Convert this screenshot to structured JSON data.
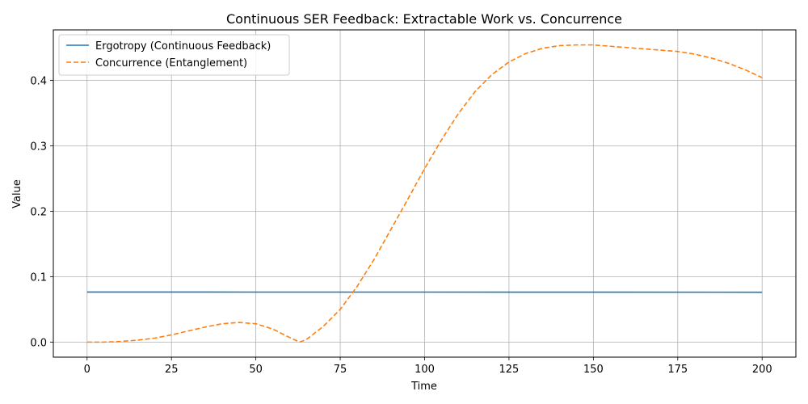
{
  "chart_data": {
    "type": "line",
    "title": "Continuous SER Feedback: Extractable Work vs. Concurrence",
    "xlabel": "Time",
    "ylabel": "Value",
    "xlim": [
      -10,
      210
    ],
    "ylim": [
      -0.023,
      0.477
    ],
    "xticks": [
      0,
      25,
      50,
      75,
      100,
      125,
      150,
      175,
      200
    ],
    "yticks": [
      0.0,
      0.1,
      0.2,
      0.3,
      0.4
    ],
    "ytick_labels": [
      "0.0",
      "0.1",
      "0.2",
      "0.3",
      "0.4"
    ],
    "grid": true,
    "legend_position": "top-left",
    "series": [
      {
        "name": "Ergotropy (Continuous Feedback)",
        "color": "#1f77b4",
        "style": "solid",
        "x": [
          0,
          50,
          100,
          150,
          200
        ],
        "y": [
          0.0765,
          0.0764,
          0.0764,
          0.0763,
          0.0762
        ]
      },
      {
        "name": "Concurrence (Entanglement)",
        "color": "#ff7f0e",
        "style": "dashed",
        "x": [
          0,
          5,
          10,
          15,
          20,
          25,
          30,
          35,
          40,
          45,
          50,
          55,
          60,
          63,
          65,
          70,
          75,
          80,
          85,
          90,
          95,
          100,
          105,
          110,
          115,
          120,
          125,
          130,
          135,
          140,
          145,
          150,
          155,
          160,
          165,
          170,
          175,
          180,
          185,
          190,
          195,
          200
        ],
        "y": [
          0.0,
          0.0,
          0.001,
          0.003,
          0.006,
          0.011,
          0.017,
          0.023,
          0.028,
          0.03,
          0.028,
          0.02,
          0.007,
          0.0,
          0.004,
          0.024,
          0.05,
          0.085,
          0.126,
          0.172,
          0.218,
          0.265,
          0.309,
          0.349,
          0.383,
          0.409,
          0.428,
          0.441,
          0.449,
          0.453,
          0.454,
          0.454,
          0.452,
          0.45,
          0.448,
          0.446,
          0.444,
          0.44,
          0.434,
          0.426,
          0.416,
          0.404
        ]
      }
    ]
  }
}
